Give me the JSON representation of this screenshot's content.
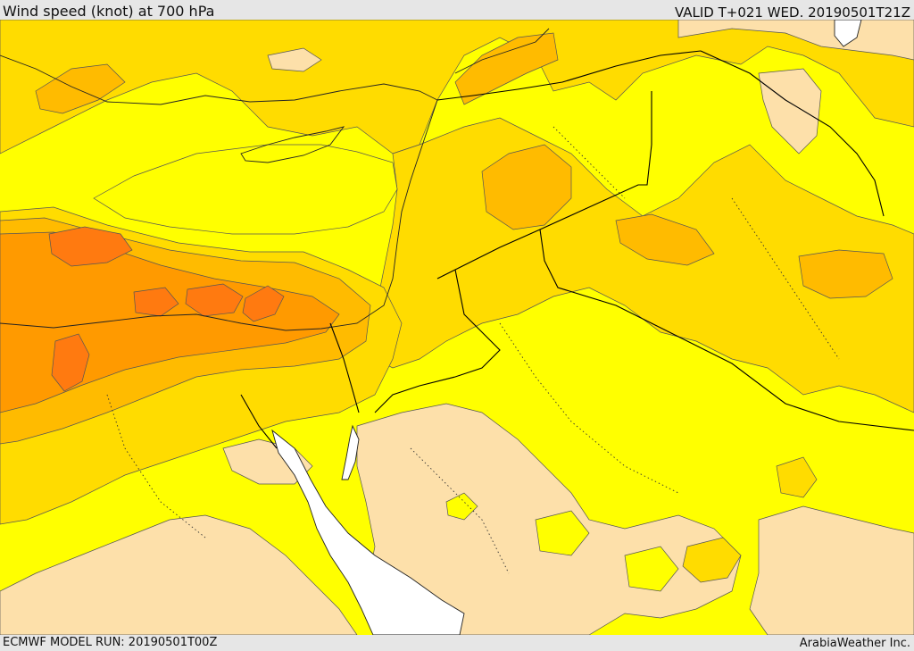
{
  "header": {
    "title": "Wind speed (knot) at 700 hPa",
    "valid": "VALID T+021 WED. 20190501T21Z"
  },
  "footer": {
    "model_run": "ECMWF MODEL RUN: 20190501T00Z",
    "provider": "ArabiaWeather Inc."
  },
  "map": {
    "field": "wind speed at 700 hPa",
    "colors": {
      "calm": "#fde0aa",
      "light": "#ffff00",
      "moderate": "#ffdc00",
      "fresh": "#ffbb00",
      "strong": "#ff9a00",
      "very_strong": "#ff7a10",
      "water": "#ffffff"
    }
  }
}
